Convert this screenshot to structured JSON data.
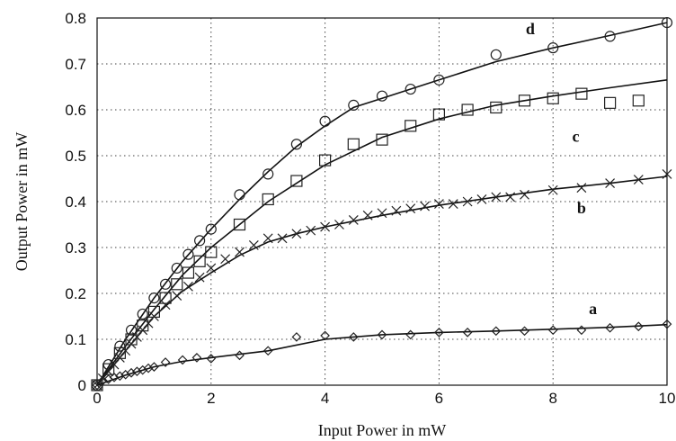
{
  "chart_data": {
    "type": "scatter",
    "title": "",
    "xlabel": "Input Power in mW",
    "ylabel": "Output Power in mW",
    "xlim": [
      0,
      10
    ],
    "ylim": [
      0,
      0.8
    ],
    "xticks": [
      "0",
      "2",
      "4",
      "6",
      "8",
      "10"
    ],
    "yticks": [
      "0",
      "0.1",
      "0.2",
      "0.3",
      "0.4",
      "0.5",
      "0.6",
      "0.7",
      "0.8"
    ],
    "grid": true,
    "series": [
      {
        "name": "a",
        "marker": "diamond",
        "points": [
          [
            0,
            0
          ],
          [
            0.1,
            0.01
          ],
          [
            0.2,
            0.013
          ],
          [
            0.3,
            0.017
          ],
          [
            0.4,
            0.02
          ],
          [
            0.5,
            0.023
          ],
          [
            0.6,
            0.027
          ],
          [
            0.7,
            0.03
          ],
          [
            0.8,
            0.033
          ],
          [
            0.9,
            0.037
          ],
          [
            1.0,
            0.04
          ],
          [
            1.2,
            0.05
          ],
          [
            1.5,
            0.055
          ],
          [
            1.75,
            0.06
          ],
          [
            2.0,
            0.058
          ],
          [
            2.5,
            0.065
          ],
          [
            3.0,
            0.075
          ],
          [
            3.5,
            0.105
          ],
          [
            4.0,
            0.108
          ],
          [
            4.5,
            0.105
          ],
          [
            5.0,
            0.11
          ],
          [
            5.5,
            0.11
          ],
          [
            6.0,
            0.115
          ],
          [
            6.5,
            0.115
          ],
          [
            7.0,
            0.118
          ],
          [
            7.5,
            0.118
          ],
          [
            8.0,
            0.12
          ],
          [
            8.5,
            0.12
          ],
          [
            9.0,
            0.125
          ],
          [
            9.5,
            0.128
          ],
          [
            10.0,
            0.133
          ]
        ],
        "fit": [
          [
            0,
            0
          ],
          [
            0.5,
            0.022
          ],
          [
            1.0,
            0.04
          ],
          [
            1.5,
            0.052
          ],
          [
            2.0,
            0.06
          ],
          [
            3.0,
            0.075
          ],
          [
            4.0,
            0.1
          ],
          [
            5.0,
            0.11
          ],
          [
            6.0,
            0.115
          ],
          [
            7.0,
            0.118
          ],
          [
            8.0,
            0.122
          ],
          [
            9.0,
            0.126
          ],
          [
            10.0,
            0.132
          ]
        ],
        "label_at": [
          8.7,
          0.155
        ]
      },
      {
        "name": "b",
        "marker": "x",
        "points": [
          [
            0,
            0
          ],
          [
            0.1,
            0.015
          ],
          [
            0.2,
            0.03
          ],
          [
            0.3,
            0.045
          ],
          [
            0.4,
            0.06
          ],
          [
            0.5,
            0.075
          ],
          [
            0.6,
            0.09
          ],
          [
            0.7,
            0.105
          ],
          [
            0.8,
            0.12
          ],
          [
            0.9,
            0.135
          ],
          [
            1.0,
            0.15
          ],
          [
            1.2,
            0.175
          ],
          [
            1.4,
            0.195
          ],
          [
            1.6,
            0.215
          ],
          [
            1.8,
            0.235
          ],
          [
            2.0,
            0.255
          ],
          [
            2.25,
            0.275
          ],
          [
            2.5,
            0.29
          ],
          [
            2.75,
            0.305
          ],
          [
            3.0,
            0.32
          ],
          [
            3.25,
            0.32
          ],
          [
            3.5,
            0.33
          ],
          [
            3.75,
            0.337
          ],
          [
            4.0,
            0.345
          ],
          [
            4.25,
            0.35
          ],
          [
            4.5,
            0.36
          ],
          [
            4.75,
            0.37
          ],
          [
            5.0,
            0.375
          ],
          [
            5.25,
            0.38
          ],
          [
            5.5,
            0.385
          ],
          [
            5.75,
            0.39
          ],
          [
            6.0,
            0.395
          ],
          [
            6.25,
            0.395
          ],
          [
            6.5,
            0.4
          ],
          [
            6.75,
            0.405
          ],
          [
            7.0,
            0.41
          ],
          [
            7.25,
            0.41
          ],
          [
            7.5,
            0.415
          ],
          [
            8.0,
            0.425
          ],
          [
            8.5,
            0.43
          ],
          [
            9.0,
            0.44
          ],
          [
            9.5,
            0.448
          ],
          [
            10.0,
            0.46
          ]
        ],
        "fit": [
          [
            0,
            0
          ],
          [
            0.5,
            0.075
          ],
          [
            1.0,
            0.15
          ],
          [
            1.5,
            0.205
          ],
          [
            2.0,
            0.245
          ],
          [
            2.5,
            0.283
          ],
          [
            3.0,
            0.312
          ],
          [
            3.5,
            0.33
          ],
          [
            4.0,
            0.345
          ],
          [
            5.0,
            0.37
          ],
          [
            6.0,
            0.392
          ],
          [
            7.0,
            0.41
          ],
          [
            8.0,
            0.427
          ],
          [
            9.0,
            0.44
          ],
          [
            10.0,
            0.455
          ]
        ],
        "label_at": [
          8.5,
          0.375
        ]
      },
      {
        "name": "c",
        "marker": "square",
        "points": [
          [
            0,
            0
          ],
          [
            0.2,
            0.035
          ],
          [
            0.4,
            0.07
          ],
          [
            0.6,
            0.1
          ],
          [
            0.8,
            0.13
          ],
          [
            1.0,
            0.16
          ],
          [
            1.2,
            0.19
          ],
          [
            1.4,
            0.22
          ],
          [
            1.6,
            0.245
          ],
          [
            1.8,
            0.27
          ],
          [
            2.0,
            0.29
          ],
          [
            2.5,
            0.35
          ],
          [
            3.0,
            0.405
          ],
          [
            3.5,
            0.445
          ],
          [
            4.0,
            0.49
          ],
          [
            4.5,
            0.525
          ],
          [
            5.0,
            0.535
          ],
          [
            5.5,
            0.565
          ],
          [
            6.0,
            0.59
          ],
          [
            6.5,
            0.6
          ],
          [
            7.0,
            0.605
          ],
          [
            7.5,
            0.62
          ],
          [
            8.0,
            0.625
          ],
          [
            8.5,
            0.635
          ],
          [
            9.0,
            0.615
          ],
          [
            9.5,
            0.62
          ]
        ],
        "fit": [
          [
            0,
            0
          ],
          [
            0.5,
            0.085
          ],
          [
            1.0,
            0.165
          ],
          [
            1.5,
            0.24
          ],
          [
            2.0,
            0.3
          ],
          [
            2.5,
            0.35
          ],
          [
            3.0,
            0.4
          ],
          [
            3.5,
            0.44
          ],
          [
            4.0,
            0.48
          ],
          [
            4.5,
            0.51
          ],
          [
            5.0,
            0.54
          ],
          [
            6.0,
            0.58
          ],
          [
            7.0,
            0.61
          ],
          [
            8.0,
            0.63
          ],
          [
            9.0,
            0.648
          ],
          [
            10.0,
            0.665
          ]
        ],
        "label_at": [
          8.4,
          0.53
        ]
      },
      {
        "name": "d",
        "marker": "circle",
        "points": [
          [
            0,
            0
          ],
          [
            0.2,
            0.045
          ],
          [
            0.4,
            0.085
          ],
          [
            0.6,
            0.12
          ],
          [
            0.8,
            0.155
          ],
          [
            1.0,
            0.19
          ],
          [
            1.2,
            0.22
          ],
          [
            1.4,
            0.255
          ],
          [
            1.6,
            0.285
          ],
          [
            1.8,
            0.315
          ],
          [
            2.0,
            0.34
          ],
          [
            2.5,
            0.415
          ],
          [
            3.0,
            0.46
          ],
          [
            3.5,
            0.525
          ],
          [
            4.0,
            0.575
          ],
          [
            4.5,
            0.61
          ],
          [
            5.0,
            0.63
          ],
          [
            5.5,
            0.645
          ],
          [
            6.0,
            0.665
          ],
          [
            7.0,
            0.72
          ],
          [
            8.0,
            0.735
          ],
          [
            9.0,
            0.76
          ],
          [
            10.0,
            0.79
          ]
        ],
        "fit": [
          [
            0,
            0
          ],
          [
            0.5,
            0.1
          ],
          [
            1.0,
            0.19
          ],
          [
            1.5,
            0.27
          ],
          [
            2.0,
            0.34
          ],
          [
            2.5,
            0.405
          ],
          [
            3.0,
            0.465
          ],
          [
            3.5,
            0.52
          ],
          [
            4.0,
            0.565
          ],
          [
            4.5,
            0.605
          ],
          [
            5.0,
            0.625
          ],
          [
            6.0,
            0.665
          ],
          [
            7.0,
            0.705
          ],
          [
            8.0,
            0.735
          ],
          [
            9.0,
            0.762
          ],
          [
            10.0,
            0.79
          ]
        ],
        "label_at": [
          7.6,
          0.765
        ]
      }
    ]
  }
}
